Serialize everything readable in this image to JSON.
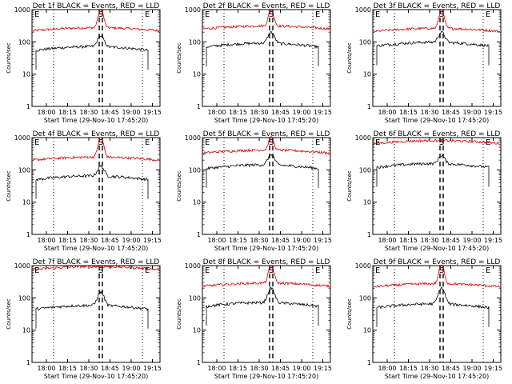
{
  "chart_data": [
    {
      "type": "line",
      "title": "Det 1f BLACK = Events, RED = LLD",
      "xlabel": "Start Time (29-Nov-10 17:45:20)",
      "ylabel": "Counts/sec",
      "yscale": "log",
      "ylim": [
        1,
        1000
      ],
      "x_ticks": [
        "18:00",
        "18:15",
        "18:30",
        "18:45",
        "19:00",
        "19:15"
      ],
      "y_ticks": [
        "1",
        "10",
        "100",
        "1000"
      ],
      "markers": [
        "E",
        "S",
        "E"
      ],
      "series": [
        {
          "name": "Events",
          "color": "#000000",
          "base": 55,
          "peak": 150
        },
        {
          "name": "LLD",
          "color": "#cc0000",
          "base": 220,
          "peak": 1000
        }
      ]
    },
    {
      "type": "line",
      "title": "Det 2f BLACK = Events, RED = LLD",
      "xlabel": "Start Time (29-Nov-10 17:45:20)",
      "ylabel": "Counts/sec",
      "yscale": "log",
      "ylim": [
        1,
        1000
      ],
      "x_ticks": [
        "18:00",
        "18:15",
        "18:30",
        "18:45",
        "19:00",
        "19:15"
      ],
      "y_ticks": [
        "1",
        "10",
        "100",
        "1000"
      ],
      "markers": [
        "E",
        "S",
        "E"
      ],
      "series": [
        {
          "name": "Events",
          "color": "#000000",
          "base": 70,
          "peak": 200
        },
        {
          "name": "LLD",
          "color": "#cc0000",
          "base": 250,
          "peak": 1000
        }
      ]
    },
    {
      "type": "line",
      "title": "Det 3f BLACK = Events, RED = LLD",
      "xlabel": "Start Time (29-Nov-10 17:45:20)",
      "ylabel": "Counts/sec",
      "yscale": "log",
      "ylim": [
        1,
        1000
      ],
      "x_ticks": [
        "18:00",
        "18:15",
        "18:30",
        "18:45",
        "19:00",
        "19:15"
      ],
      "y_ticks": [
        "1",
        "10",
        "100",
        "1000"
      ],
      "markers": [
        "E",
        "S",
        "E"
      ],
      "series": [
        {
          "name": "Events",
          "color": "#000000",
          "base": 75,
          "peak": 200
        },
        {
          "name": "LLD",
          "color": "#cc0000",
          "base": 210,
          "peak": 900
        }
      ]
    },
    {
      "type": "line",
      "title": "Det 4f BLACK = Events, RED = LLD",
      "xlabel": "Start Time (29-Nov-10 17:45:20)",
      "ylabel": "Counts/sec",
      "yscale": "log",
      "ylim": [
        1,
        1000
      ],
      "x_ticks": [
        "18:00",
        "18:15",
        "18:30",
        "18:45",
        "19:00",
        "19:15"
      ],
      "y_ticks": [
        "1",
        "10",
        "100",
        "1000"
      ],
      "markers": [
        "E",
        "S",
        "E"
      ],
      "series": [
        {
          "name": "Events",
          "color": "#000000",
          "base": 50,
          "peak": 130
        },
        {
          "name": "LLD",
          "color": "#cc0000",
          "base": 200,
          "peak": 1000
        }
      ]
    },
    {
      "type": "line",
      "title": "Det 5f BLACK = Events, RED = LLD",
      "xlabel": "Start Time (29-Nov-10 17:45:20)",
      "ylabel": "Counts/sec",
      "yscale": "log",
      "ylim": [
        1,
        1000
      ],
      "x_ticks": [
        "18:00",
        "18:15",
        "18:30",
        "18:45",
        "19:00",
        "19:15"
      ],
      "y_ticks": [
        "1",
        "10",
        "100",
        "1000"
      ],
      "markers": [
        "E",
        "S",
        "E"
      ],
      "series": [
        {
          "name": "Events",
          "color": "#000000",
          "base": 110,
          "peak": 300
        },
        {
          "name": "LLD",
          "color": "#cc0000",
          "base": 330,
          "peak": 1000
        }
      ]
    },
    {
      "type": "line",
      "title": "Det 6f BLACK = Events, RED = LLD",
      "xlabel": "Start Time (29-Nov-10 17:45:20)",
      "ylabel": "Counts/sec",
      "yscale": "log",
      "ylim": [
        1,
        1000
      ],
      "x_ticks": [
        "18:00",
        "18:15",
        "18:30",
        "18:45",
        "19:00",
        "19:15"
      ],
      "y_ticks": [
        "1",
        "10",
        "100",
        "1000"
      ],
      "markers": [
        "E",
        "S",
        "E"
      ],
      "series": [
        {
          "name": "Events",
          "color": "#000000",
          "base": 120,
          "peak": 280
        },
        {
          "name": "LLD",
          "color": "#cc0000",
          "base": 650,
          "peak": 750
        }
      ]
    },
    {
      "type": "line",
      "title": "Det 7f BLACK = Events, RED = LLD",
      "xlabel": "Start Time (29-Nov-10 17:45:20)",
      "ylabel": "Counts/sec",
      "yscale": "log",
      "ylim": [
        1,
        1000
      ],
      "x_ticks": [
        "18:00",
        "18:15",
        "18:30",
        "18:45",
        "19:00",
        "19:15"
      ],
      "y_ticks": [
        "1",
        "10",
        "100",
        "1000"
      ],
      "markers": [
        "E",
        "S",
        "E"
      ],
      "series": [
        {
          "name": "Events",
          "color": "#000000",
          "base": 45,
          "peak": 150
        },
        {
          "name": "LLD",
          "color": "#cc0000",
          "base": 750,
          "peak": 900
        }
      ]
    },
    {
      "type": "line",
      "title": "Det 8f BLACK = Events, RED = LLD",
      "xlabel": "Start Time (29-Nov-10 17:45:20)",
      "ylabel": "Counts/sec",
      "yscale": "log",
      "ylim": [
        1,
        1000
      ],
      "x_ticks": [
        "18:00",
        "18:15",
        "18:30",
        "18:45",
        "19:00",
        "19:15"
      ],
      "y_ticks": [
        "1",
        "10",
        "100",
        "1000"
      ],
      "markers": [
        "E",
        "S",
        "E"
      ],
      "series": [
        {
          "name": "Events",
          "color": "#000000",
          "base": 55,
          "peak": 200
        },
        {
          "name": "LLD",
          "color": "#cc0000",
          "base": 230,
          "peak": 1000
        }
      ]
    },
    {
      "type": "line",
      "title": "Det 9f BLACK = Events, RED = LLD",
      "xlabel": "Start Time (29-Nov-10 17:45:20)",
      "ylabel": "Counts/sec",
      "yscale": "log",
      "ylim": [
        1,
        1000
      ],
      "x_ticks": [
        "18:00",
        "18:15",
        "18:30",
        "18:45",
        "19:00",
        "19:15"
      ],
      "y_ticks": [
        "1",
        "10",
        "100",
        "1000"
      ],
      "markers": [
        "E",
        "S",
        "E"
      ],
      "series": [
        {
          "name": "Events",
          "color": "#000000",
          "base": 50,
          "peak": 200
        },
        {
          "name": "LLD",
          "color": "#cc0000",
          "base": 220,
          "peak": 1000
        }
      ]
    }
  ]
}
